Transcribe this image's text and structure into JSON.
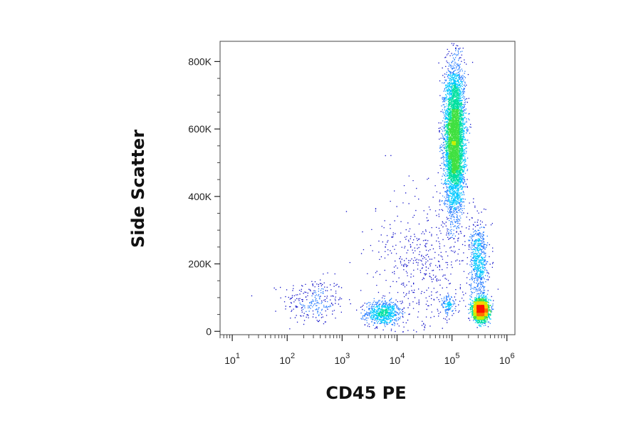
{
  "chart_data": {
    "type": "scatter",
    "style": "density-colored flow cytometry dot plot",
    "xlabel": "CD45 PE",
    "ylabel": "Side Scatter",
    "x_scale": "log",
    "x_ticks": [
      {
        "base": "10",
        "exp": "1",
        "value": 10
      },
      {
        "base": "10",
        "exp": "2",
        "value": 100
      },
      {
        "base": "10",
        "exp": "3",
        "value": 1000
      },
      {
        "base": "10",
        "exp": "4",
        "value": 10000
      },
      {
        "base": "10",
        "exp": "5",
        "value": 100000
      },
      {
        "base": "10",
        "exp": "6",
        "value": 1000000
      }
    ],
    "xlim": [
      6,
      1400000
    ],
    "y_ticks": [
      {
        "label": "0",
        "value": 0
      },
      {
        "label": "200K",
        "value": 200000
      },
      {
        "label": "400K",
        "value": 400000
      },
      {
        "label": "600K",
        "value": 600000
      },
      {
        "label": "800K",
        "value": 800000
      }
    ],
    "ylim": [
      -10000,
      860000
    ],
    "grid": false,
    "density_colors": [
      "#1010c8",
      "#1f78ff",
      "#00c8ff",
      "#00e0a0",
      "#40e040",
      "#c8f000",
      "#ffd000",
      "#ff7000",
      "#ff1000"
    ],
    "populations": [
      {
        "id": "debris",
        "n": 260,
        "x_center": 300,
        "y_center": 90000,
        "x_spread_decades": 0.28,
        "y_spread": 35000
      },
      {
        "id": "lymphocyte-like-low",
        "n": 700,
        "x_center": 5500,
        "y_center": 55000,
        "x_spread_decades": 0.16,
        "y_spread": 18000
      },
      {
        "id": "neutrophils",
        "n": 5200,
        "x_center": 110000,
        "y_center": 570000,
        "x_spread_decades": 0.09,
        "y_spread": 105000
      },
      {
        "id": "monocytes",
        "n": 650,
        "x_center": 300000,
        "y_center": 210000,
        "x_spread_decades": 0.08,
        "y_spread": 55000
      },
      {
        "id": "lymphocytes",
        "n": 2600,
        "x_center": 330000,
        "y_center": 65000,
        "x_spread_decades": 0.07,
        "y_spread": 16000
      },
      {
        "id": "small-cluster",
        "n": 130,
        "x_center": 85000,
        "y_center": 80000,
        "x_spread_decades": 0.07,
        "y_spread": 15000
      },
      {
        "id": "bridge",
        "n": 500,
        "x_center": 30000,
        "y_center": 200000,
        "x_spread_decades": 0.45,
        "y_spread": 110000
      }
    ]
  }
}
